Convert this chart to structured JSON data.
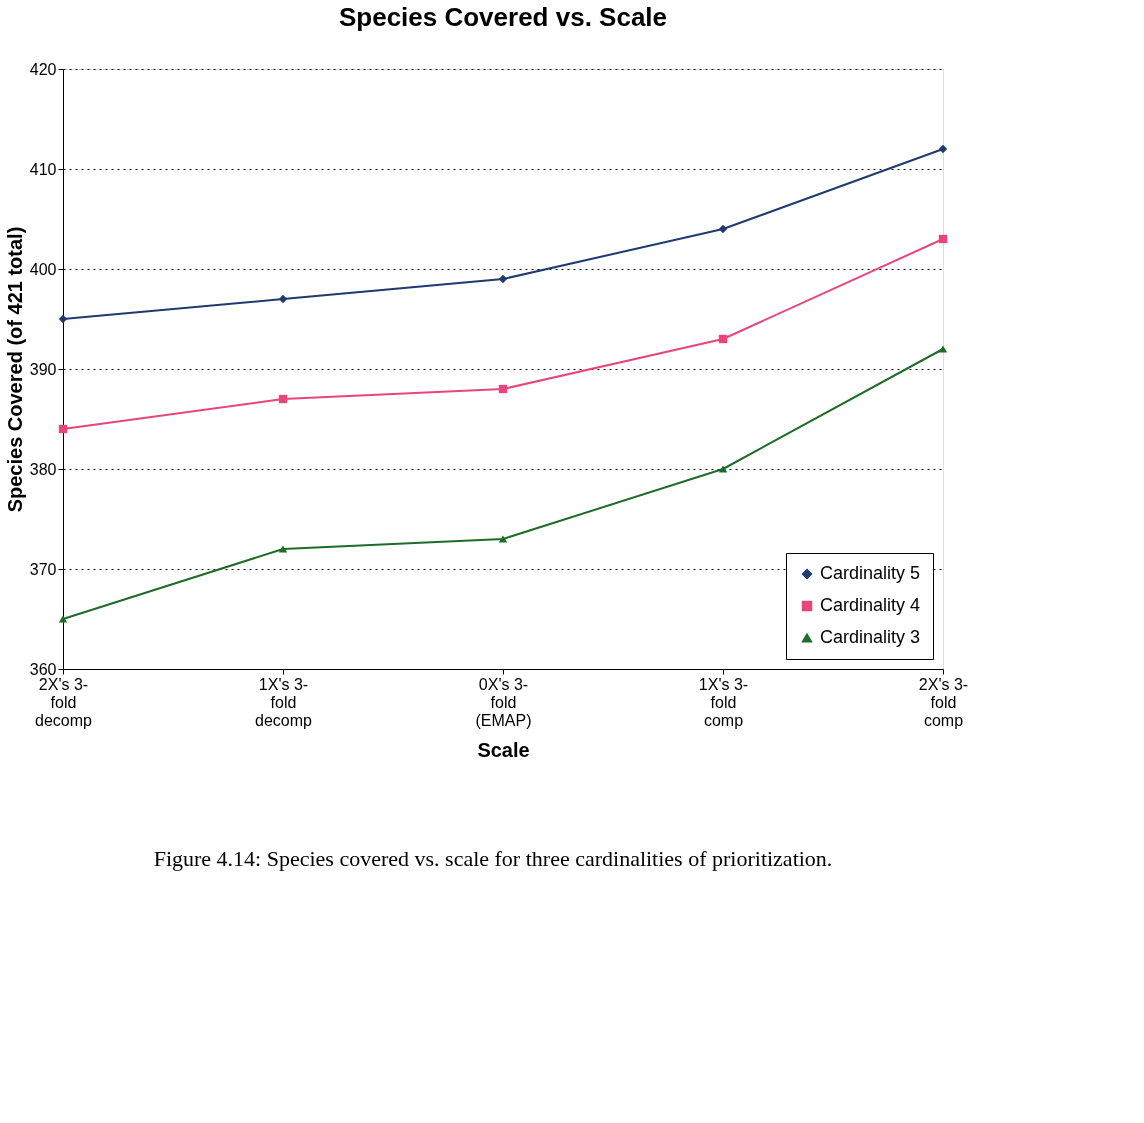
{
  "chart_data": {
    "type": "line",
    "title": "Species Covered vs. Scale",
    "xlabel": "Scale",
    "ylabel": "Species Covered (of 421 total)",
    "categories": [
      "2X's 3-\nfold\ndecomp",
      "1X's 3-\nfold\ndecomp",
      "0X's 3-\nfold\n(EMAP)",
      "1X's 3-\nfold\ncomp",
      "2X's 3-\nfold\ncomp"
    ],
    "series": [
      {
        "name": "Cardinality 5",
        "color": "#1f3a6e",
        "marker": "diamond",
        "values": [
          395,
          397,
          399,
          404,
          412
        ]
      },
      {
        "name": "Cardinality 4",
        "color": "#e8457a",
        "marker": "square",
        "values": [
          384,
          387,
          388,
          393,
          403
        ]
      },
      {
        "name": "Cardinality 3",
        "color": "#1e6b2a",
        "marker": "triangle",
        "values": [
          365,
          372,
          373,
          380,
          392
        ]
      }
    ],
    "ylim": [
      360,
      420
    ],
    "yticks": [
      360,
      370,
      380,
      390,
      400,
      410,
      420
    ],
    "grid": "y",
    "legend": "bottom right",
    "line_style": "solid",
    "annotations": [
      "Figure 4.14:  Species covered vs. scale for three cardinalities of prioritization."
    ]
  }
}
